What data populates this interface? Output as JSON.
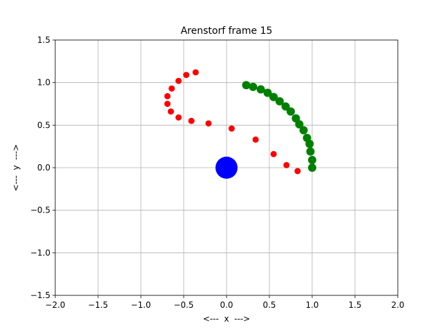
{
  "chart_data": {
    "type": "scatter",
    "title": "Arenstorf frame 15",
    "xlabel": "<---  x  --->",
    "ylabel": "<---  y  --->",
    "xlim": [
      -2,
      2
    ],
    "ylim": [
      -1.5,
      1.5
    ],
    "xticks": [
      {
        "value": -2,
        "label": "−2.0"
      },
      {
        "value": -1.5,
        "label": "−1.5"
      },
      {
        "value": -1,
        "label": "−1.0"
      },
      {
        "value": -0.5,
        "label": "−0.5"
      },
      {
        "value": 0,
        "label": "0.0"
      },
      {
        "value": 0.5,
        "label": "0.5"
      },
      {
        "value": 1,
        "label": "1.0"
      },
      {
        "value": 1.5,
        "label": "1.5"
      },
      {
        "value": 2,
        "label": "2.0"
      }
    ],
    "yticks": [
      {
        "value": -1.5,
        "label": "−1.5"
      },
      {
        "value": -1,
        "label": "−1.0"
      },
      {
        "value": -0.5,
        "label": "−0.5"
      },
      {
        "value": 0,
        "label": "0.0"
      },
      {
        "value": 0.5,
        "label": "0.5"
      },
      {
        "value": 1,
        "label": "1.0"
      },
      {
        "value": 1.5,
        "label": "1.5"
      }
    ],
    "grid": true,
    "series": [
      {
        "color": "blue",
        "marker_size": 16,
        "x": [
          0
        ],
        "y": [
          0
        ]
      },
      {
        "color": "red",
        "marker_size": 4.5,
        "x": [
          1.0,
          0.83,
          0.7,
          0.55,
          0.34,
          0.06,
          -0.21,
          -0.41,
          -0.56,
          -0.65,
          -0.69,
          -0.69,
          -0.64,
          -0.56,
          -0.47,
          -0.36
        ],
        "y": [
          0,
          -0.04,
          0.03,
          0.16,
          0.33,
          0.46,
          0.52,
          0.55,
          0.59,
          0.66,
          0.75,
          0.84,
          0.93,
          1.02,
          1.09,
          1.12
        ]
      },
      {
        "color": "green",
        "marker_size": 6,
        "x": [
          1.0,
          1.0,
          0.98,
          0.97,
          0.94,
          0.9,
          0.85,
          0.81,
          0.75,
          0.69,
          0.62,
          0.55,
          0.48,
          0.4,
          0.31,
          0.23
        ],
        "y": [
          0,
          0.09,
          0.19,
          0.28,
          0.35,
          0.44,
          0.51,
          0.58,
          0.66,
          0.72,
          0.78,
          0.83,
          0.88,
          0.92,
          0.95,
          0.97
        ]
      }
    ]
  }
}
